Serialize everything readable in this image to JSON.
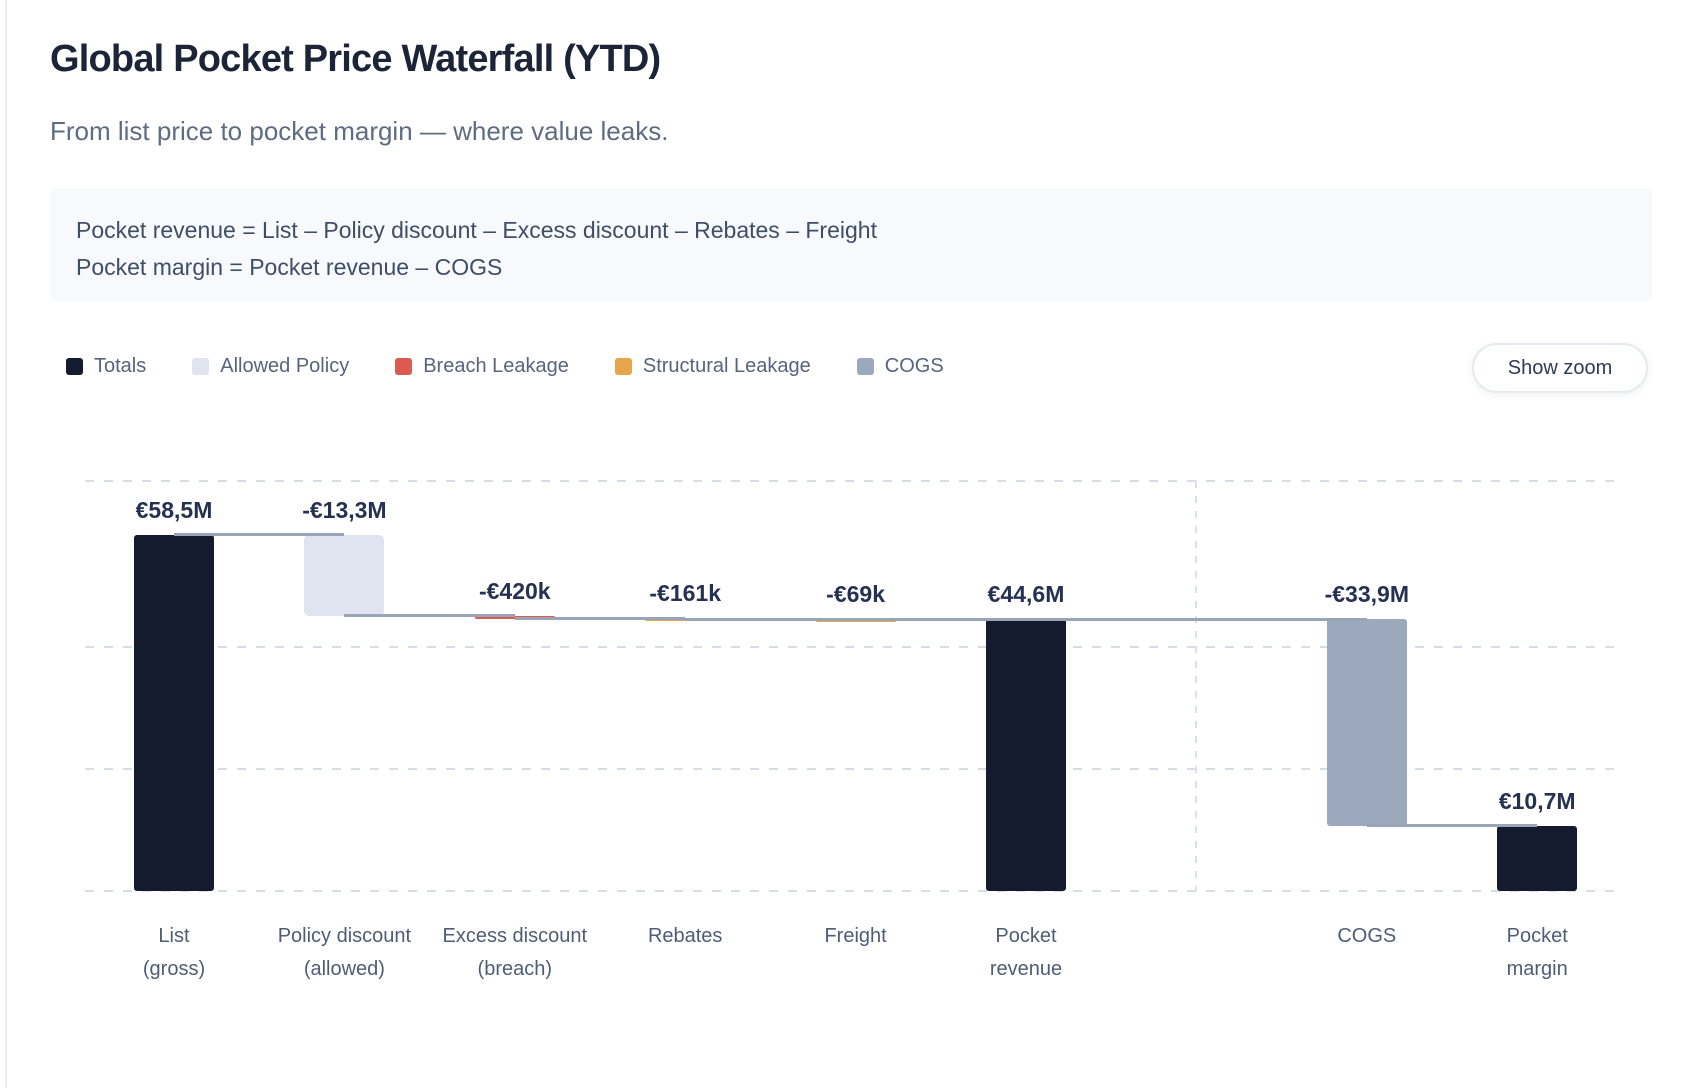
{
  "header": {
    "title": "Global Pocket Price Waterfall (YTD)",
    "subtitle": "From list price to pocket margin — where value leaks."
  },
  "formula_box": {
    "line1": "Pocket revenue = List – Policy discount – Excess discount – Rebates – Freight",
    "line2": "Pocket margin = Pocket revenue – COGS"
  },
  "legend": {
    "items": [
      {
        "label": "Totals",
        "color_key": "totals"
      },
      {
        "label": "Allowed Policy",
        "color_key": "allowed_policy"
      },
      {
        "label": "Breach Leakage",
        "color_key": "breach_leakage"
      },
      {
        "label": "Structural Leakage",
        "color_key": "structural_leakage"
      },
      {
        "label": "COGS",
        "color_key": "cogs"
      }
    ]
  },
  "toolbar": {
    "show_zoom_label": "Show zoom"
  },
  "chart_data": {
    "type": "waterfall",
    "currency": "EUR",
    "title": "Global Pocket Price Waterfall (YTD)",
    "categories": [
      "List (gross)",
      "Policy discount (allowed)",
      "Excess discount (breach)",
      "Rebates",
      "Freight",
      "Pocket revenue",
      "COGS",
      "Pocket margin"
    ],
    "values_meur": [
      58.5,
      -13.3,
      -0.42,
      -0.161,
      -0.069,
      44.6,
      -33.9,
      10.7
    ],
    "bars": [
      {
        "axis_label": [
          "List",
          "(gross)"
        ],
        "value_label": "€58,5M",
        "value_meur": 58.5,
        "kind": "total",
        "color_key": "totals"
      },
      {
        "axis_label": [
          "Policy discount",
          "(allowed)"
        ],
        "value_label": "-€13,3M",
        "value_meur": -13.3,
        "kind": "delta",
        "color_key": "allowed_policy"
      },
      {
        "axis_label": [
          "Excess discount",
          "(breach)"
        ],
        "value_label": "-€420k",
        "value_meur": -0.42,
        "kind": "delta",
        "color_key": "breach_leakage"
      },
      {
        "axis_label": [
          "Rebates"
        ],
        "value_label": "-€161k",
        "value_meur": -0.161,
        "kind": "delta",
        "color_key": "structural_leakage"
      },
      {
        "axis_label": [
          "Freight"
        ],
        "value_label": "-€69k",
        "value_meur": -0.069,
        "kind": "delta",
        "color_key": "structural_leakage"
      },
      {
        "axis_label": [
          "Pocket",
          "revenue"
        ],
        "value_label": "€44,6M",
        "value_meur": 44.6,
        "kind": "total",
        "color_key": "totals"
      },
      {
        "axis_label": [],
        "kind": "separator"
      },
      {
        "axis_label": [
          "COGS"
        ],
        "value_label": "-€33,9M",
        "value_meur": -33.9,
        "kind": "delta",
        "color_key": "cogs"
      },
      {
        "axis_label": [
          "Pocket",
          "margin"
        ],
        "value_label": "€10,7M",
        "value_meur": 10.7,
        "kind": "total",
        "color_key": "totals"
      }
    ],
    "colors": {
      "totals": "#141b2e",
      "allowed_policy": "#dfe4ee",
      "breach_leakage": "#dc5a50",
      "structural_leakage": "#e6a44b",
      "cogs": "#9ba8bd",
      "connector": "#99a4b6",
      "gridline": "#d5dde7"
    },
    "gridlines_meur": [
      0,
      20,
      40
    ],
    "ylim_meur": [
      0,
      67.3
    ],
    "legend_position": "top-left",
    "grid": "dashed-horizontal, dashed vertical separator before COGS"
  }
}
